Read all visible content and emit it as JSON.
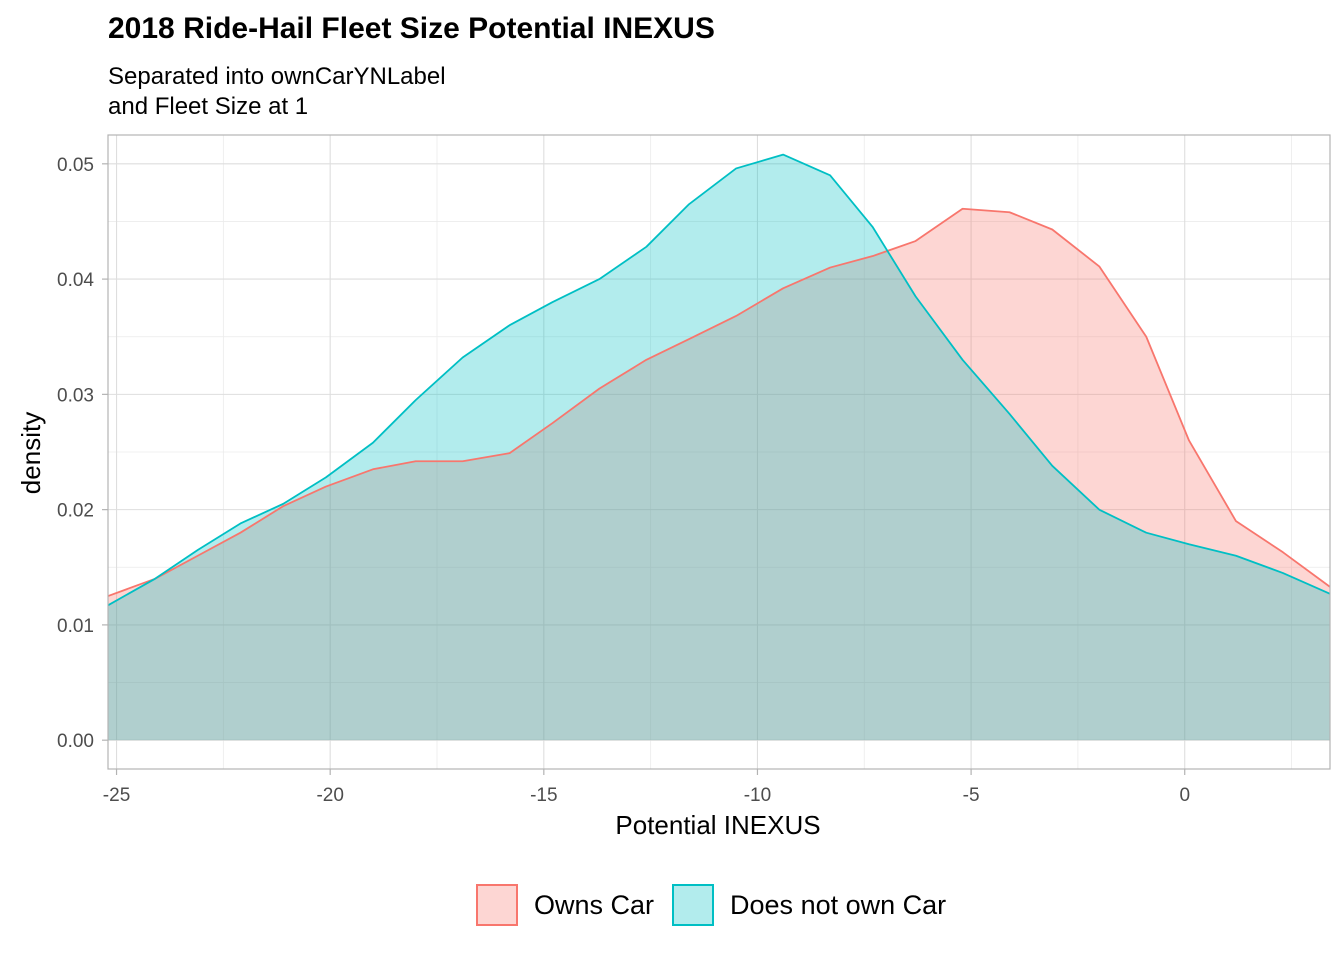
{
  "chart_data": {
    "type": "area",
    "title": "2018 Ride-Hail Fleet Size Potential INEXUS",
    "subtitle": [
      "Separated into ownCarYNLabel",
      "and Fleet Size at 1"
    ],
    "xlabel": "Potential INEXUS",
    "ylabel": "density",
    "xlim": [
      -25.2,
      3.4
    ],
    "ylim": [
      -0.0025,
      0.0525
    ],
    "x_ticks": [
      -25,
      -20,
      -15,
      -10,
      -5,
      0
    ],
    "x_tick_labels": [
      "-25",
      "-20",
      "-15",
      "-10",
      "-5",
      "0"
    ],
    "y_ticks": [
      0.0,
      0.01,
      0.02,
      0.03,
      0.04,
      0.05
    ],
    "y_tick_labels": [
      "0.00",
      "0.01",
      "0.02",
      "0.03",
      "0.04",
      "0.05"
    ],
    "grid": true,
    "legend_position": "bottom",
    "series": [
      {
        "name": "Owns Car",
        "line_color": "#F8766D",
        "fill_color": "#F8766D",
        "x": [
          -25.2,
          -24.1,
          -23.1,
          -22.1,
          -21.1,
          -20.1,
          -19.0,
          -18.0,
          -16.9,
          -15.8,
          -14.8,
          -13.7,
          -12.6,
          -11.6,
          -10.5,
          -9.4,
          -8.3,
          -7.3,
          -6.3,
          -5.2,
          -4.1,
          -3.1,
          -2.0,
          -0.9,
          0.1,
          1.2,
          2.3,
          3.4
        ],
        "values": [
          0.0125,
          0.014,
          0.016,
          0.018,
          0.0203,
          0.022,
          0.0235,
          0.0242,
          0.0242,
          0.0249,
          0.0275,
          0.0305,
          0.033,
          0.0348,
          0.0368,
          0.0392,
          0.041,
          0.042,
          0.0433,
          0.0461,
          0.0458,
          0.0443,
          0.0411,
          0.035,
          0.026,
          0.019,
          0.0163,
          0.0133
        ]
      },
      {
        "name": "Does not own Car",
        "line_color": "#00BFC4",
        "fill_color": "#00BFC4",
        "x": [
          -25.2,
          -24.1,
          -23.1,
          -22.1,
          -21.1,
          -20.1,
          -19.0,
          -18.0,
          -16.9,
          -15.8,
          -14.8,
          -13.7,
          -12.6,
          -11.6,
          -10.5,
          -9.4,
          -8.3,
          -7.3,
          -6.3,
          -5.2,
          -4.1,
          -3.1,
          -2.0,
          -0.9,
          0.1,
          1.2,
          2.3,
          3.4
        ],
        "values": [
          0.0117,
          0.014,
          0.0165,
          0.0188,
          0.0205,
          0.0228,
          0.0258,
          0.0295,
          0.0332,
          0.036,
          0.038,
          0.04,
          0.0428,
          0.0465,
          0.0496,
          0.0508,
          0.049,
          0.0445,
          0.0385,
          0.033,
          0.0283,
          0.0238,
          0.02,
          0.018,
          0.017,
          0.016,
          0.0145,
          0.0127
        ]
      }
    ]
  }
}
